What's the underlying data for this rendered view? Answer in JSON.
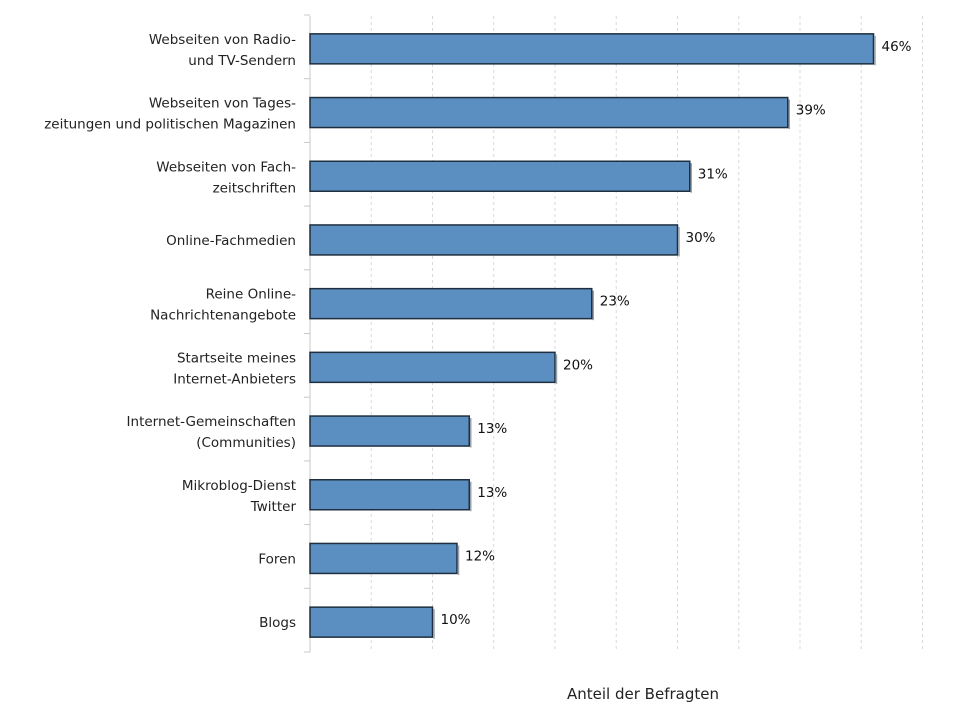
{
  "chart_data": {
    "type": "bar",
    "orientation": "horizontal",
    "title": "",
    "xlabel": "Anteil der Befragten",
    "ylabel": "",
    "xlim": [
      0,
      50
    ],
    "grid": true,
    "value_suffix": "%",
    "bar_color": "#5b8fc2",
    "bar_border_color": "#1f2f3f",
    "categories": [
      [
        "Webseiten von Radio-",
        "und TV-Sendern"
      ],
      [
        "Webseiten von Tages-",
        "zeitungen und politischen Magazinen"
      ],
      [
        "Webseiten von Fach-",
        "zeitschriften"
      ],
      [
        "Online-Fachmedien"
      ],
      [
        "Reine Online-",
        "Nachrichtenangebote"
      ],
      [
        "Startseite meines",
        "Internet-Anbieters"
      ],
      [
        "Internet-Gemeinschaften",
        "(Communities)"
      ],
      [
        "Mikroblog-Dienst",
        "Twitter"
      ],
      [
        "Foren"
      ],
      [
        "Blogs"
      ]
    ],
    "values": [
      46,
      39,
      31,
      30,
      23,
      20,
      13,
      13,
      12,
      10
    ]
  }
}
